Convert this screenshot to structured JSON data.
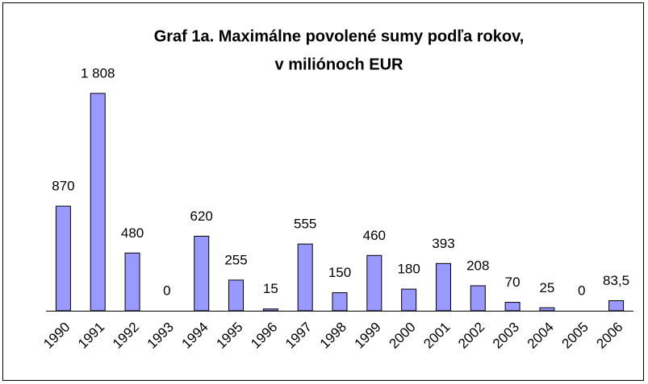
{
  "chart_data": {
    "type": "bar",
    "title": [
      "Graf 1a. Maximálne povolené sumy podľa rokov,",
      "v miliónoch EUR"
    ],
    "categories": [
      "1990",
      "1991",
      "1992",
      "1993",
      "1994",
      "1995",
      "1996",
      "1997",
      "1998",
      "1999",
      "2000",
      "2001",
      "2002",
      "2003",
      "2004",
      "2005",
      "2006"
    ],
    "values": [
      870,
      1808,
      480,
      0,
      620,
      255,
      15,
      555,
      150,
      460,
      180,
      393,
      208,
      70,
      25,
      0,
      83.5
    ],
    "value_labels": [
      "870",
      "1 808",
      "480",
      "0",
      "620",
      "255",
      "15",
      "555",
      "150",
      "460",
      "180",
      "393",
      "208",
      "70",
      "25",
      "0",
      "83,5"
    ],
    "color": "#9999ff"
  }
}
